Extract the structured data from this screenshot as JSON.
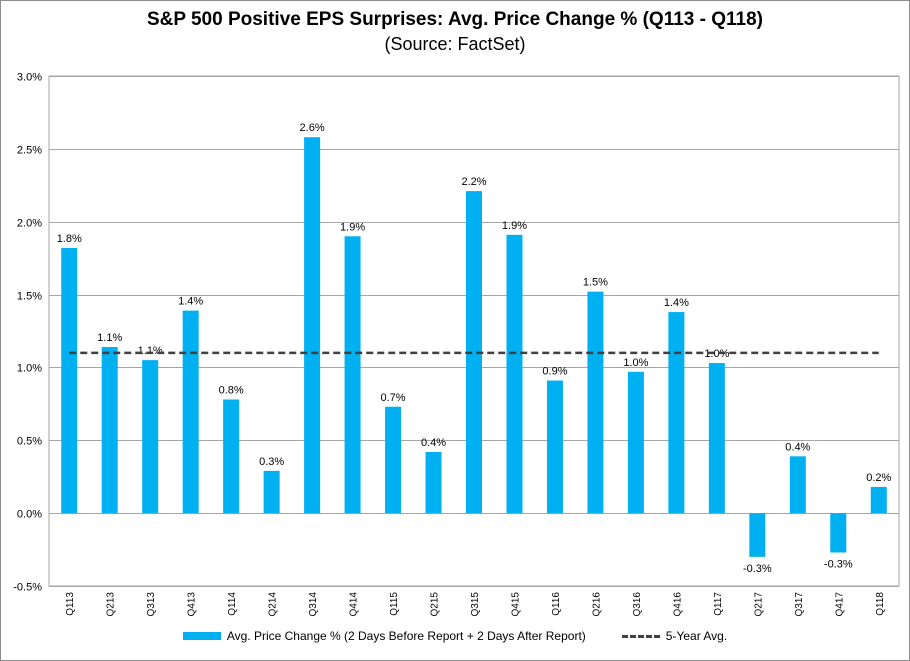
{
  "chart_data": {
    "type": "bar",
    "title": "S&P 500 Positive EPS Surprises: Avg. Price Change % (Q113 - Q118)",
    "subtitle": "(Source: FactSet)",
    "categories": [
      "Q113",
      "Q213",
      "Q313",
      "Q413",
      "Q114",
      "Q214",
      "Q314",
      "Q414",
      "Q115",
      "Q215",
      "Q315",
      "Q415",
      "Q116",
      "Q216",
      "Q316",
      "Q416",
      "Q117",
      "Q217",
      "Q317",
      "Q417",
      "Q118"
    ],
    "series": [
      {
        "name": "Avg. Price Change % (2 Days Before Report + 2 Days After Report)",
        "type": "bar",
        "color": "#00b0f0",
        "values": [
          1.82,
          1.14,
          1.05,
          1.39,
          0.78,
          0.29,
          2.58,
          1.9,
          0.73,
          0.42,
          2.21,
          1.91,
          0.91,
          1.52,
          0.97,
          1.38,
          1.03,
          -0.3,
          0.39,
          -0.27,
          0.18
        ],
        "labels": [
          "1.8%",
          "1.1%",
          "1.1%",
          "1.4%",
          "0.8%",
          "0.3%",
          "2.6%",
          "1.9%",
          "0.7%",
          "0.4%",
          "2.2%",
          "1.9%",
          "0.9%",
          "1.5%",
          "1.0%",
          "1.4%",
          "1.0%",
          "-0.3%",
          "0.4%",
          "-0.3%",
          "0.2%"
        ]
      },
      {
        "name": "5-Year Avg.",
        "type": "line",
        "style": "dashed",
        "color": "#404040",
        "value": 1.1
      }
    ],
    "yticks": [
      "-0.5%",
      "0.0%",
      "0.5%",
      "1.0%",
      "1.5%",
      "2.0%",
      "2.5%",
      "3.0%"
    ],
    "ylim": [
      -0.5,
      3.0
    ],
    "grid": true,
    "legend_position": "bottom"
  }
}
